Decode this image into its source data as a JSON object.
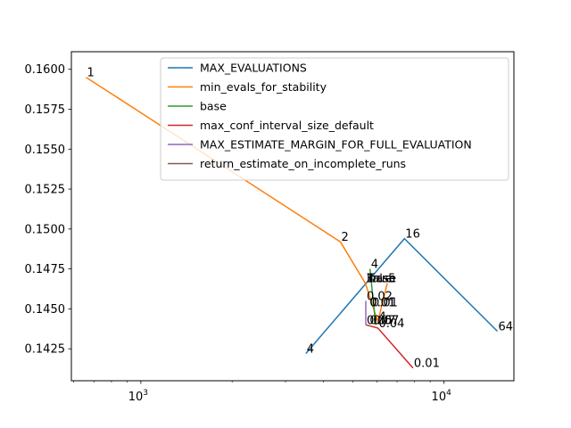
{
  "chart_data": {
    "type": "line",
    "x_scale": "log",
    "xlim": [
      590,
      17000
    ],
    "ylim": [
      0.1405,
      0.1611
    ],
    "grid": false,
    "legend_position": "top-right",
    "x_ticks": [
      {
        "value": 1000,
        "base": "10",
        "exp": "3"
      },
      {
        "value": 10000,
        "base": "10",
        "exp": "4"
      }
    ],
    "y_ticks": [
      "0.1425",
      "0.1450",
      "0.1475",
      "0.1500",
      "0.1525",
      "0.1550",
      "0.1575",
      "0.1600"
    ],
    "series": [
      {
        "name": "MAX_EVALUATIONS",
        "color": "#1f77b4",
        "points": [
          {
            "x": 3500,
            "y": 0.1422,
            "label": "4"
          },
          {
            "x": 7400,
            "y": 0.1494,
            "label": "16"
          },
          {
            "x": 15000,
            "y": 0.1436,
            "label": "64"
          }
        ]
      },
      {
        "name": "min_evals_for_stability",
        "color": "#ff7f0e",
        "points": [
          {
            "x": 660,
            "y": 0.1595,
            "label": "1"
          },
          {
            "x": 4550,
            "y": 0.1492,
            "label": "2"
          },
          {
            "x": 5500,
            "y": 0.1466,
            "label": "3"
          },
          {
            "x": 6050,
            "y": 0.1442,
            "label": "4"
          },
          {
            "x": 6500,
            "y": 0.1466,
            "label": "5"
          }
        ]
      },
      {
        "name": "base",
        "color": "#2ca02c",
        "points": [
          {
            "x": 5700,
            "y": 0.1475,
            "label": "4"
          },
          {
            "x": 5950,
            "y": 0.144,
            "label": ""
          }
        ]
      },
      {
        "name": "max_conf_interval_size_default",
        "color": "#d62728",
        "points": [
          {
            "x": 5520,
            "y": 0.144,
            "label": ""
          },
          {
            "x": 6050,
            "y": 0.1438,
            "label": "0.04"
          },
          {
            "x": 7900,
            "y": 0.1413,
            "label": "0.01"
          }
        ]
      },
      {
        "name": "MAX_ESTIMATE_MARGIN_FOR_FULL_EVALUATION",
        "color": "#9467bd",
        "points": [
          {
            "x": 5520,
            "y": 0.1455,
            "label": "0.02"
          },
          {
            "x": 5520,
            "y": 0.144,
            "label": "0.05"
          }
        ]
      },
      {
        "name": "return_estimate_on_incomplete_runs",
        "color": "#8c564b",
        "points": [
          {
            "x": 5520,
            "y": 0.1466,
            "label": "False"
          },
          {
            "x": 5550,
            "y": 0.1466,
            "label": "True"
          }
        ]
      }
    ],
    "extra_labels": [
      {
        "x": 5600,
        "y": 0.1466,
        "text": "base"
      },
      {
        "x": 5650,
        "y": 0.1451,
        "text": "0.01"
      },
      {
        "x": 5650,
        "y": 0.1451,
        "text": "0.01"
      },
      {
        "x": 5750,
        "y": 0.1451,
        "text": "0.01"
      },
      {
        "x": 5650,
        "y": 0.144,
        "text": "0.07"
      },
      {
        "x": 5800,
        "y": 0.144,
        "text": "0.07"
      }
    ]
  }
}
